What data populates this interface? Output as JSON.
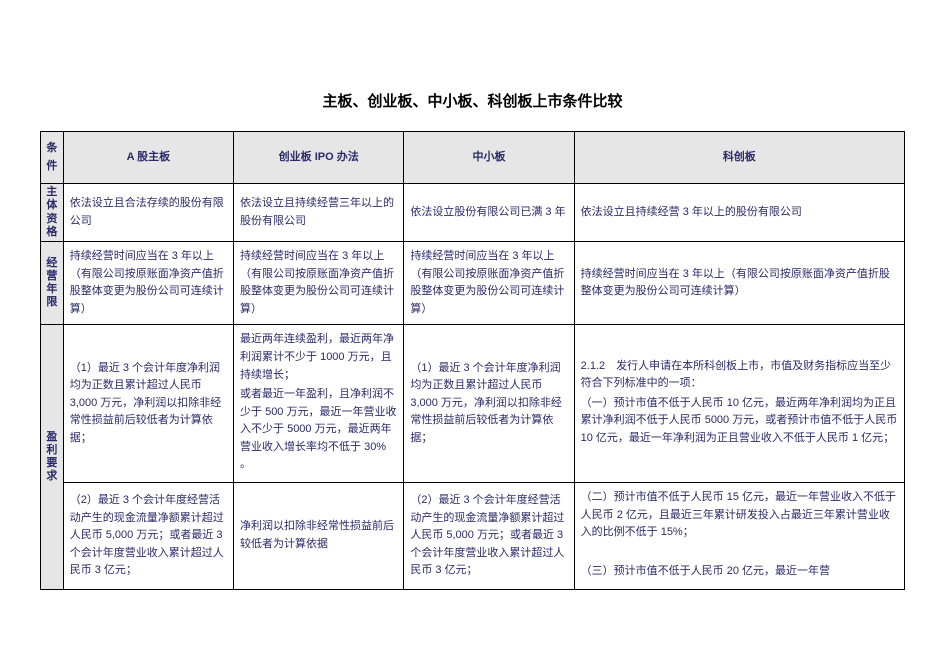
{
  "title": "主板、创业板、中小板、科创板上市条件比较",
  "headers": {
    "condition": "条\n件",
    "col_a": "A 股主板",
    "col_b": "创业板 IPO 办法",
    "col_c": "中小板",
    "col_d": "科创板"
  },
  "row_labels": {
    "subject": "主\n体\n资\n格",
    "operation": "经\n营\n年\n限",
    "profit": "盈\n利\n要\n求"
  },
  "subject": {
    "a": "依法设立且合法存续的股份有限公司",
    "b": "依法设立且持续经营三年以上的股份有限公司",
    "c": "依法设立股份有限公司已满 3 年",
    "d": "依法设立且持续经营 3 年以上的股份有限公司"
  },
  "operation": {
    "a": "持续经营时间应当在 3 年以上（有限公司按原账面净资产值折股整体变更为股份公司可连续计算）",
    "b": "持续经营时间应当在 3 年以上（有限公司按原账面净资产值折股整体变更为股份公司可连续计算）",
    "c": "持续经营时间应当在 3 年以上（有限公司按原账面净资产值折股整体变更为股份公司可连续计算）",
    "d": "持续经营时间应当在 3 年以上（有限公司按原账面净资产值折股整体变更为股份公司可连续计算）"
  },
  "profit": {
    "a1": "（1）最近 3 个会计年度净利润均为正数且累计超过人民币 3,000 万元，净利润以扣除非经常性损益前后较低者为计算依据；",
    "a2": "（2）最近 3 个会计年度经营活动产生的现金流量净额累计超过人民币 5,000 万元；或者最近 3 个会计年度营业收入累计超过人民币 3 亿元；",
    "b1": "最近两年连续盈利，最近两年净利润累计不少于 1000 万元，且持续增长；",
    "b2": "或者最近一年盈利，且净利润不少于 500 万元，最近一年营业收入不少于 5000 万元，最近两年营业收入增长率均不低于 30% 。",
    "b3": "净利润以扣除非经常性损益前后较低者为计算依据",
    "c1": "（1）最近 3 个会计年度净利润均为正数且累计超过人民币 3,000 万元，净利润以扣除非经常性损益前后较低者为计算依据；",
    "c2": "（2）最近 3 个会计年度经营活动产生的现金流量净额累计超过人民币 5,000 万元；或者最近 3 个会计年度营业收入累计超过人民币 3 亿元；",
    "d1": "2.1.2　发行人申请在本所科创板上市，市值及财务指标应当至少符合下列标准中的一项：",
    "d2": "（一）预计市值不低于人民币 10 亿元，最近两年净利润均为正且累计净利润不低于人民币 5000 万元，或者预计市值不低于人民币 10 亿元，最近一年净利润为正且营业收入不低于人民币 1 亿元；",
    "d3": "（二）预计市值不低于人民币 15 亿元，最近一年营业收入不低于人民币 2 亿元，且最近三年累计研发投入占最近三年累计营业收入的比例不低于 15%；",
    "d4": "（三）预计市值不低于人民币 20 亿元，最近一年营"
  },
  "styles": {
    "text_color": "#2a2a6a",
    "header_bg": "#e6e6e6",
    "border_color": "#000000",
    "page_bg": "#ffffff",
    "title_fontsize": 15,
    "cell_fontsize": 11
  }
}
